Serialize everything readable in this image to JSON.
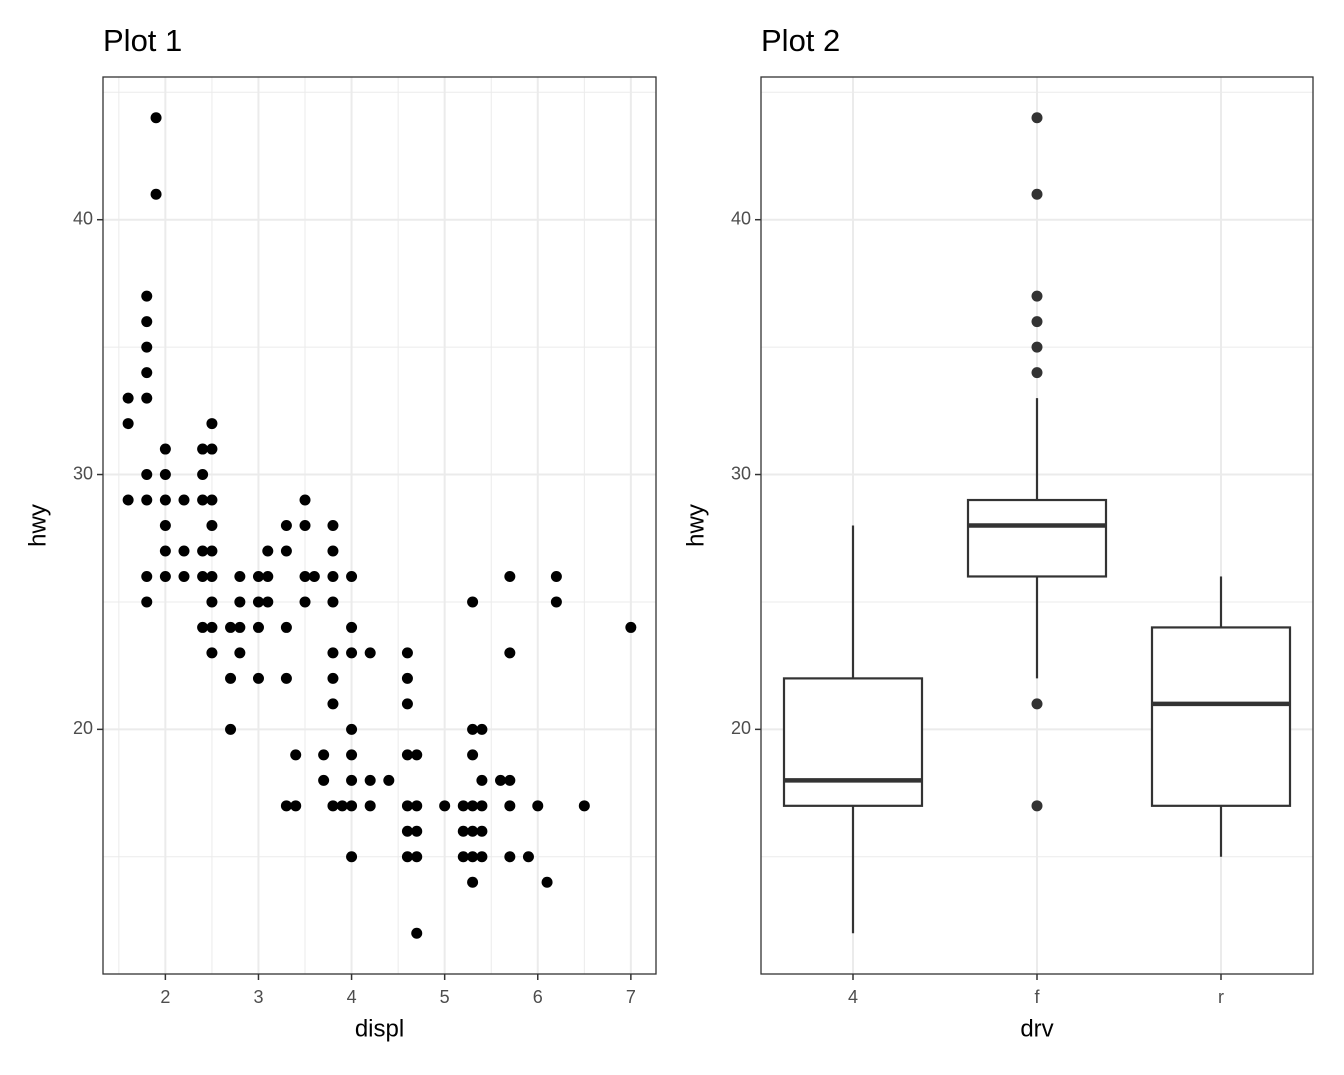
{
  "chart_data": [
    {
      "type": "scatter",
      "title": "Plot 1",
      "x_label": "displ",
      "y_label": "hwy",
      "color": "#000000",
      "x": [
        1.6,
        1.6,
        1.6,
        1.8,
        1.8,
        1.8,
        1.8,
        1.8,
        1.8,
        1.8,
        1.8,
        1.8,
        1.9,
        1.9,
        2.0,
        2.0,
        2.0,
        2.0,
        2.0,
        2.0,
        2.2,
        2.2,
        2.2,
        2.4,
        2.4,
        2.4,
        2.4,
        2.4,
        2.4,
        2.5,
        2.5,
        2.5,
        2.5,
        2.5,
        2.5,
        2.5,
        2.5,
        2.5,
        2.7,
        2.7,
        2.7,
        2.8,
        2.8,
        2.8,
        2.8,
        3.0,
        3.0,
        3.0,
        3.0,
        3.1,
        3.1,
        3.1,
        3.3,
        3.3,
        3.3,
        3.3,
        3.3,
        3.4,
        3.4,
        3.5,
        3.5,
        3.5,
        3.5,
        3.6,
        3.7,
        3.7,
        3.8,
        3.8,
        3.8,
        3.8,
        3.8,
        3.8,
        3.8,
        3.8,
        3.9,
        4.0,
        4.0,
        4.0,
        4.0,
        4.0,
        4.0,
        4.0,
        4.0,
        4.2,
        4.2,
        4.2,
        4.4,
        4.6,
        4.6,
        4.6,
        4.6,
        4.6,
        4.6,
        4.6,
        4.7,
        4.7,
        4.7,
        4.7,
        4.7,
        5.0,
        5.2,
        5.2,
        5.2,
        5.3,
        5.3,
        5.3,
        5.3,
        5.3,
        5.3,
        5.3,
        5.4,
        5.4,
        5.4,
        5.4,
        5.4,
        5.6,
        5.7,
        5.7,
        5.7,
        5.7,
        5.7,
        5.9,
        6.0,
        6.1,
        6.2,
        6.2,
        6.5,
        7.0
      ],
      "y": [
        33,
        32,
        29,
        37,
        36,
        35,
        34,
        33,
        30,
        29,
        26,
        25,
        44,
        41,
        31,
        30,
        29,
        28,
        27,
        26,
        29,
        27,
        26,
        31,
        30,
        29,
        27,
        26,
        24,
        32,
        31,
        29,
        28,
        27,
        26,
        25,
        24,
        23,
        24,
        22,
        20,
        26,
        25,
        24,
        23,
        26,
        25,
        24,
        22,
        27,
        26,
        25,
        28,
        27,
        24,
        22,
        17,
        19,
        17,
        29,
        28,
        26,
        25,
        26,
        19,
        18,
        28,
        27,
        26,
        25,
        23,
        22,
        21,
        17,
        17,
        26,
        24,
        23,
        20,
        19,
        18,
        17,
        15,
        23,
        18,
        17,
        18,
        23,
        22,
        21,
        19,
        17,
        16,
        15,
        19,
        17,
        16,
        15,
        12,
        17,
        17,
        16,
        15,
        25,
        20,
        19,
        17,
        16,
        15,
        14,
        20,
        18,
        17,
        16,
        15,
        18,
        26,
        23,
        18,
        17,
        15,
        15,
        17,
        14,
        26,
        25,
        17,
        24
      ],
      "xlim": [
        1.33,
        7.27
      ],
      "xticks": [
        2,
        3,
        4,
        5,
        6,
        7
      ],
      "x_minor_grid": [
        1.5,
        2.5,
        3.5,
        4.5,
        5.5,
        6.5
      ],
      "ylim": [
        10.4,
        45.6
      ],
      "yticks": [
        20,
        30,
        40
      ],
      "y_minor_grid": [
        15,
        25,
        35,
        45
      ],
      "grid": true
    },
    {
      "type": "boxplot",
      "title": "Plot 2",
      "x_label": "drv",
      "y_label": "hwy",
      "color": "#333333",
      "categories": [
        "4",
        "f",
        "r"
      ],
      "min": [
        12,
        22,
        15
      ],
      "q1": [
        17,
        26,
        17
      ],
      "median": [
        18,
        28,
        21
      ],
      "q3": [
        22,
        29,
        24
      ],
      "max": [
        28,
        33,
        26
      ],
      "outliers": [
        [],
        [
          44,
          41,
          37,
          36,
          35,
          34,
          21,
          17
        ],
        []
      ],
      "ylim": [
        10.4,
        45.6
      ],
      "yticks": [
        20,
        30,
        40
      ],
      "y_minor_grid": [
        15,
        25,
        35,
        45
      ],
      "grid": true
    }
  ]
}
